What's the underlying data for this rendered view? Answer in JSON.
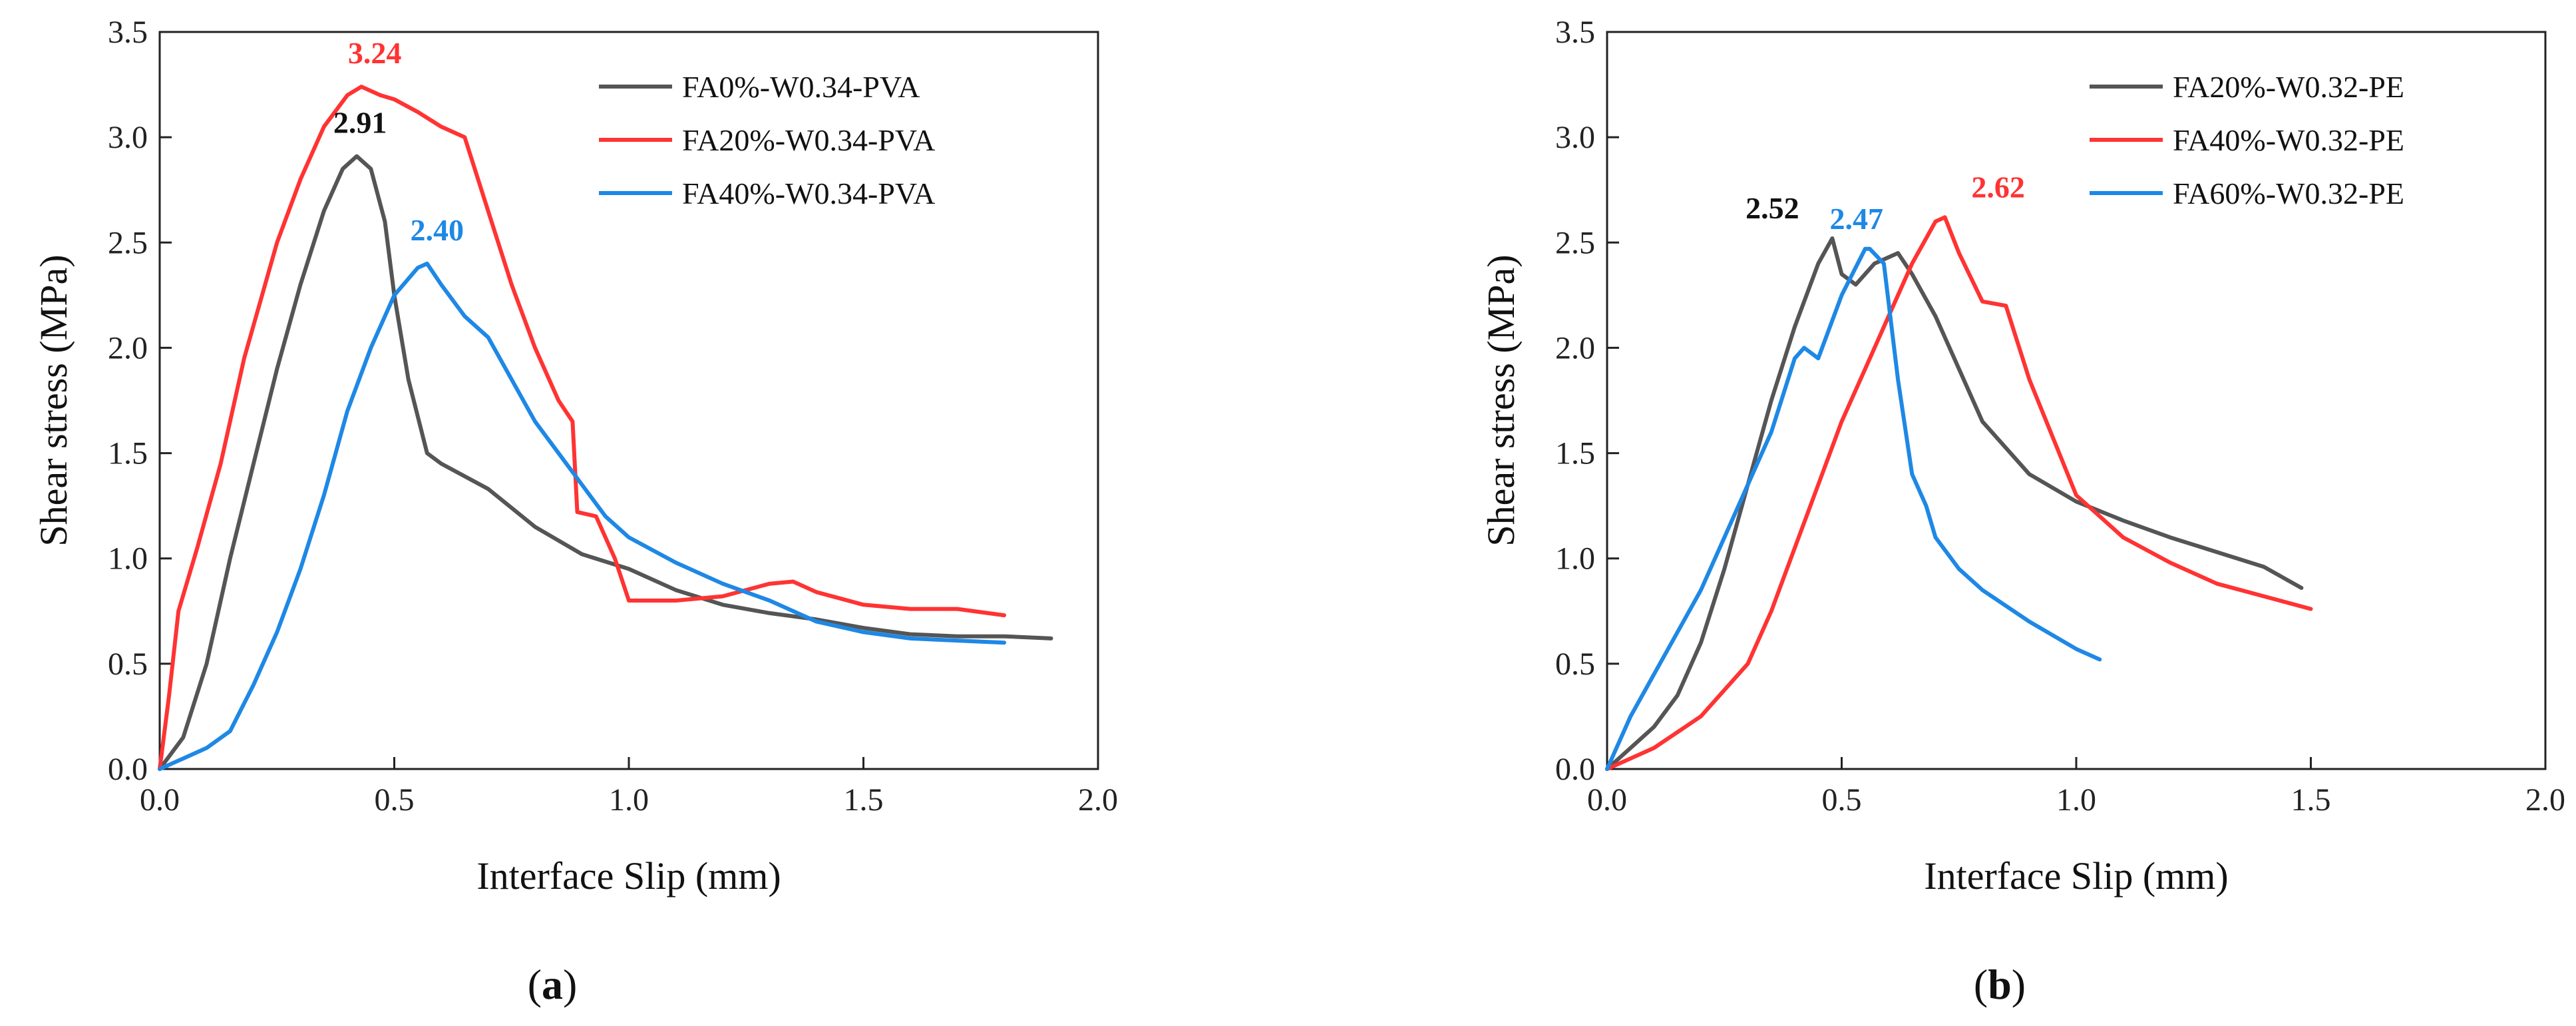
{
  "chart_data": [
    {
      "type": "line",
      "panel_label": "(a)",
      "panel_letter": "a",
      "xlabel": "Interface Slip (mm)",
      "ylabel": "Shear stress (MPa)",
      "xlim": [
        0.0,
        2.0
      ],
      "ylim": [
        0.0,
        3.5
      ],
      "xticks": [
        "0.0",
        "0.5",
        "1.0",
        "1.5",
        "2.0"
      ],
      "yticks": [
        "0.0",
        "0.5",
        "1.0",
        "1.5",
        "2.0",
        "2.5",
        "3.0",
        "3.5"
      ],
      "legend_position": "top-right",
      "series": [
        {
          "name": "FA0%-W0.34-PVA",
          "color": "#555555",
          "x": [
            0.0,
            0.05,
            0.1,
            0.15,
            0.2,
            0.25,
            0.3,
            0.35,
            0.39,
            0.42,
            0.45,
            0.48,
            0.5,
            0.53,
            0.57,
            0.6,
            0.7,
            0.8,
            0.9,
            1.0,
            1.1,
            1.2,
            1.3,
            1.4,
            1.5,
            1.6,
            1.7,
            1.8,
            1.9
          ],
          "y": [
            0.0,
            0.15,
            0.5,
            1.0,
            1.45,
            1.9,
            2.3,
            2.65,
            2.85,
            2.91,
            2.85,
            2.6,
            2.25,
            1.85,
            1.5,
            1.45,
            1.33,
            1.15,
            1.02,
            0.95,
            0.85,
            0.78,
            0.74,
            0.71,
            0.67,
            0.64,
            0.63,
            0.63,
            0.62
          ],
          "peak_label": "2.91",
          "peak": [
            0.42,
            2.91
          ]
        },
        {
          "name": "FA20%-W0.34-PVA",
          "color": "#ff3333",
          "x": [
            0.0,
            0.02,
            0.04,
            0.08,
            0.13,
            0.18,
            0.25,
            0.3,
            0.35,
            0.4,
            0.43,
            0.47,
            0.5,
            0.55,
            0.6,
            0.65,
            0.7,
            0.75,
            0.8,
            0.85,
            0.88,
            0.89,
            0.93,
            0.97,
            1.0,
            1.1,
            1.2,
            1.3,
            1.35,
            1.4,
            1.5,
            1.6,
            1.7,
            1.8
          ],
          "y": [
            0.0,
            0.35,
            0.75,
            1.05,
            1.45,
            1.95,
            2.5,
            2.8,
            3.05,
            3.2,
            3.24,
            3.2,
            3.18,
            3.12,
            3.05,
            3.0,
            2.65,
            2.3,
            2.0,
            1.75,
            1.65,
            1.22,
            1.2,
            1.0,
            0.8,
            0.8,
            0.82,
            0.88,
            0.89,
            0.84,
            0.78,
            0.76,
            0.76,
            0.73
          ],
          "peak_label": "3.24",
          "peak": [
            0.43,
            3.24
          ]
        },
        {
          "name": "FA40%-W0.34-PVA",
          "color": "#1e88e5",
          "x": [
            0.0,
            0.05,
            0.1,
            0.15,
            0.2,
            0.25,
            0.3,
            0.35,
            0.4,
            0.45,
            0.5,
            0.55,
            0.57,
            0.6,
            0.65,
            0.7,
            0.75,
            0.8,
            0.85,
            0.9,
            0.95,
            1.0,
            1.1,
            1.2,
            1.3,
            1.4,
            1.5,
            1.6,
            1.7,
            1.8
          ],
          "y": [
            0.0,
            0.05,
            0.1,
            0.18,
            0.4,
            0.65,
            0.95,
            1.3,
            1.7,
            2.0,
            2.25,
            2.38,
            2.4,
            2.3,
            2.15,
            2.05,
            1.85,
            1.65,
            1.5,
            1.35,
            1.2,
            1.1,
            0.98,
            0.88,
            0.8,
            0.7,
            0.65,
            0.62,
            0.61,
            0.6
          ],
          "peak_label": "2.40",
          "peak": [
            0.56,
            2.4
          ]
        }
      ]
    },
    {
      "type": "line",
      "panel_label": "(b)",
      "panel_letter": "b",
      "xlabel": "Interface Slip (mm)",
      "ylabel": "Shear stress (MPa)",
      "xlim": [
        0.0,
        2.0
      ],
      "ylim": [
        0.0,
        3.5
      ],
      "xticks": [
        "0.0",
        "0.5",
        "1.0",
        "1.5",
        "2.0"
      ],
      "yticks": [
        "0.0",
        "0.5",
        "1.0",
        "1.5",
        "2.0",
        "2.5",
        "3.0",
        "3.5"
      ],
      "legend_position": "top-right",
      "series": [
        {
          "name": "FA20%-W0.32-PE",
          "color": "#555555",
          "x": [
            0.0,
            0.05,
            0.1,
            0.15,
            0.2,
            0.25,
            0.3,
            0.35,
            0.4,
            0.45,
            0.48,
            0.5,
            0.53,
            0.57,
            0.62,
            0.65,
            0.7,
            0.75,
            0.8,
            0.9,
            1.0,
            1.1,
            1.2,
            1.3,
            1.4,
            1.48
          ],
          "y": [
            0.0,
            0.1,
            0.2,
            0.35,
            0.6,
            0.95,
            1.35,
            1.75,
            2.1,
            2.4,
            2.52,
            2.35,
            2.3,
            2.4,
            2.45,
            2.35,
            2.15,
            1.9,
            1.65,
            1.4,
            1.27,
            1.18,
            1.1,
            1.03,
            0.96,
            0.86
          ],
          "peak_label": "2.52",
          "peak": [
            0.48,
            2.52
          ]
        },
        {
          "name": "FA40%-W0.32-PE",
          "color": "#ff3333",
          "x": [
            0.0,
            0.1,
            0.2,
            0.3,
            0.35,
            0.4,
            0.45,
            0.5,
            0.55,
            0.6,
            0.65,
            0.7,
            0.72,
            0.75,
            0.8,
            0.85,
            0.9,
            1.0,
            1.1,
            1.2,
            1.3,
            1.4,
            1.5
          ],
          "y": [
            0.0,
            0.1,
            0.25,
            0.5,
            0.75,
            1.05,
            1.35,
            1.65,
            1.9,
            2.15,
            2.4,
            2.6,
            2.62,
            2.45,
            2.22,
            2.2,
            1.85,
            1.3,
            1.1,
            0.98,
            0.88,
            0.82,
            0.76
          ],
          "peak_label": "2.62",
          "peak": [
            0.72,
            2.62
          ]
        },
        {
          "name": "FA60%-W0.32-PE",
          "color": "#1e88e5",
          "x": [
            0.0,
            0.05,
            0.1,
            0.15,
            0.2,
            0.25,
            0.3,
            0.35,
            0.4,
            0.42,
            0.45,
            0.5,
            0.55,
            0.56,
            0.59,
            0.62,
            0.65,
            0.68,
            0.7,
            0.75,
            0.8,
            0.9,
            1.0,
            1.05
          ],
          "y": [
            0.0,
            0.25,
            0.45,
            0.65,
            0.85,
            1.1,
            1.35,
            1.6,
            1.95,
            2.0,
            1.95,
            2.25,
            2.47,
            2.47,
            2.4,
            1.85,
            1.4,
            1.25,
            1.1,
            0.95,
            0.85,
            0.7,
            0.57,
            0.52
          ],
          "peak_label": "2.47",
          "peak": [
            0.56,
            2.47
          ]
        }
      ]
    }
  ]
}
